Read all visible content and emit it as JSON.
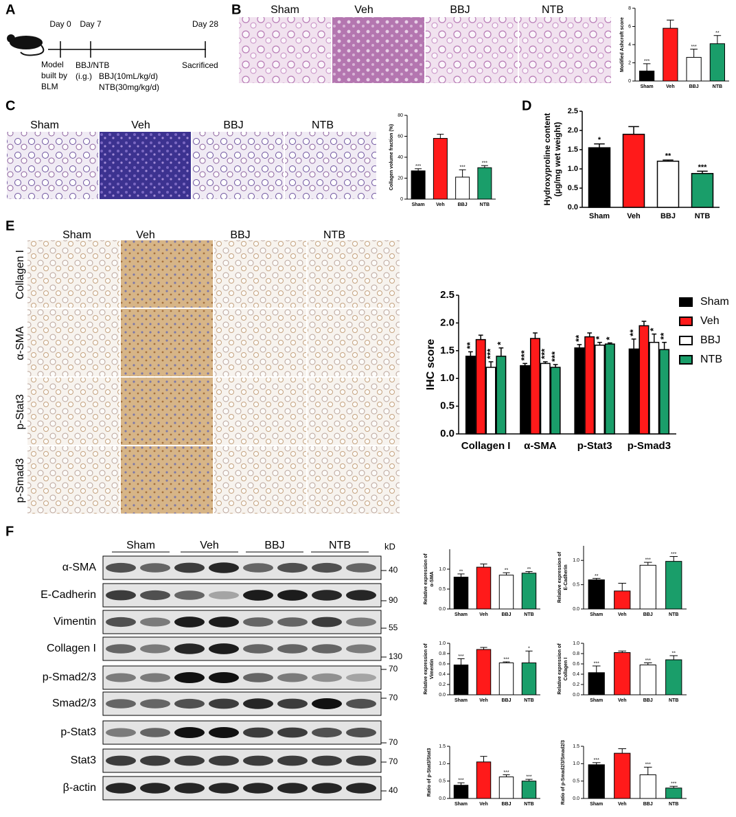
{
  "panel_labels": [
    "A",
    "B",
    "C",
    "D",
    "E",
    "F"
  ],
  "timeline": {
    "days": [
      "Day 0",
      "Day 7",
      "Day 28"
    ],
    "model": [
      "Model",
      "built by",
      "BLM"
    ],
    "treatment": "BBJ/NTB",
    "route": "(i.g.)",
    "doses": [
      "BBJ(10mL/kg/d)",
      "NTB(30mg/kg/d)"
    ],
    "endpoint": "Sacrificed"
  },
  "he_groups": [
    "Sham",
    "Veh",
    "BBJ",
    "NTB"
  ],
  "masson_groups": [
    "Sham",
    "Veh",
    "BBJ",
    "NTB"
  ],
  "ihc_groups": [
    "Sham",
    "Veh",
    "BBJ",
    "NTB"
  ],
  "ihc_rows": [
    "Collagen I",
    "α-SMA",
    "p-Stat3",
    "p-Smad3"
  ],
  "western_blot": {
    "groups": [
      "Sham",
      "Veh",
      "BBJ",
      "NTB"
    ],
    "unit": "kD",
    "proteins": [
      "α-SMA",
      "E-Cadherin",
      "Vimentin",
      "Collagen I",
      "p-Smad2/3",
      "Smad2/3",
      "p-Stat3",
      "Stat3",
      "β-actin"
    ],
    "markers": [
      "40",
      "90",
      "55",
      "130",
      "70",
      "70",
      "70",
      "70",
      "40"
    ]
  },
  "chart_data": [
    {
      "type": "bar",
      "ylabel": "Modified Ashcroft score",
      "categories": [
        "Sham",
        "Veh",
        "BBJ",
        "NTB"
      ],
      "values": [
        1.1,
        5.8,
        2.6,
        4.1
      ],
      "errors": [
        0.8,
        0.9,
        0.9,
        0.9
      ],
      "annotations": [
        "***",
        null,
        "***",
        "**"
      ],
      "colors": [
        "#000000",
        "#ff1a1a",
        "#ffffff",
        "#1a9e6a"
      ],
      "ylim": [
        0,
        8
      ],
      "yticks": [
        0,
        2,
        4,
        6,
        8
      ]
    },
    {
      "type": "bar",
      "ylabel": "Collagen volume fraction (%)",
      "categories": [
        "Sham",
        "Veh",
        "BBJ",
        "NTB"
      ],
      "values": [
        27,
        58,
        21,
        30
      ],
      "errors": [
        2,
        4,
        7,
        2
      ],
      "annotations": [
        "***",
        null,
        "***",
        "***"
      ],
      "colors": [
        "#000000",
        "#ff1a1a",
        "#ffffff",
        "#1a9e6a"
      ],
      "ylim": [
        0,
        80
      ],
      "yticks": [
        0,
        20,
        40,
        60,
        80
      ]
    },
    {
      "type": "bar",
      "ylabel": [
        "Hydroxyproline content",
        "(μg/mg wet weight)"
      ],
      "categories": [
        "Sham",
        "Veh",
        "BBJ",
        "NTB"
      ],
      "values": [
        1.55,
        1.9,
        1.2,
        0.88
      ],
      "errors": [
        0.1,
        0.2,
        0.03,
        0.06
      ],
      "annotations": [
        "*",
        null,
        "**",
        "***"
      ],
      "colors": [
        "#000000",
        "#ff1a1a",
        "#ffffff",
        "#1a9e6a"
      ],
      "ylim": [
        0,
        2.5
      ],
      "yticks": [
        {
          "value": 0,
          "label": "0.0"
        },
        0.5,
        {
          "value": 1,
          "label": "1.0"
        },
        1.5,
        {
          "value": 2,
          "label": "2.0"
        },
        2.5
      ]
    },
    {
      "type": "bar",
      "ylabel": "IHC score",
      "categories": [
        "Collagen I",
        "α-SMA",
        "p-Stat3",
        "p-Smad3"
      ],
      "legend": "right",
      "series": [
        {
          "name": "Sham",
          "color": "#000000",
          "values": [
            1.4,
            1.23,
            1.55,
            1.53
          ],
          "errors": [
            0.08,
            0.04,
            0.06,
            0.18
          ],
          "annotations": [
            "**",
            "***",
            "**",
            "**"
          ]
        },
        {
          "name": "Veh",
          "color": "#ff1a1a",
          "values": [
            1.7,
            1.72,
            1.75,
            1.95
          ],
          "errors": [
            0.08,
            0.1,
            0.07,
            0.08
          ],
          "annotations": [
            null,
            null,
            null,
            null
          ]
        },
        {
          "name": "BBJ",
          "color": "#ffffff",
          "values": [
            1.2,
            1.27,
            1.6,
            1.65
          ],
          "errors": [
            0.1,
            0.03,
            0.05,
            0.15
          ],
          "annotations": [
            "***",
            "***",
            "*",
            "*"
          ]
        },
        {
          "name": "NTB",
          "color": "#1a9e6a",
          "values": [
            1.4,
            1.2,
            1.62,
            1.52
          ],
          "errors": [
            0.15,
            0.05,
            0.02,
            0.13
          ],
          "annotations": [
            "*",
            "***",
            "*",
            "**"
          ]
        }
      ],
      "ylim": [
        0,
        2.5
      ],
      "yticks": [
        {
          "value": 0,
          "label": "0.0"
        },
        0.5,
        {
          "value": 1,
          "label": "1.0"
        },
        1.5,
        {
          "value": 2,
          "label": "2.0"
        },
        2.5
      ]
    },
    {
      "type": "bar",
      "ylabel": [
        "Relative expression of",
        "α-SMA"
      ],
      "categories": [
        "Sham",
        "Veh",
        "BBJ",
        "NTB"
      ],
      "values": [
        0.8,
        1.05,
        0.85,
        0.9
      ],
      "errors": [
        0.08,
        0.08,
        0.06,
        0.04
      ],
      "annotations": [
        "**",
        null,
        "**",
        "**"
      ],
      "colors": [
        "#000000",
        "#ff1a1a",
        "#ffffff",
        "#1a9e6a"
      ],
      "ylim": [
        0,
        1.5
      ],
      "yticks": [
        {
          "value": 0,
          "label": "0.0"
        },
        0.5,
        {
          "value": 1,
          "label": "1.0"
        }
      ]
    },
    {
      "type": "bar",
      "ylabel": [
        "Relative expression of",
        "E-Cadherin"
      ],
      "categories": [
        "Sham",
        "Veh",
        "BBJ",
        "NTB"
      ],
      "values": [
        0.6,
        0.37,
        0.9,
        0.98
      ],
      "errors": [
        0.03,
        0.16,
        0.06,
        0.1
      ],
      "annotations": [
        "**",
        null,
        "***",
        "***"
      ],
      "colors": [
        "#000000",
        "#ff1a1a",
        "#ffffff",
        "#1a9e6a"
      ],
      "ylim": [
        0,
        1.3
      ],
      "yticks": [
        {
          "value": 0,
          "label": "0.0"
        },
        0.5,
        {
          "value": 1,
          "label": "1.0"
        }
      ]
    },
    {
      "type": "bar",
      "ylabel": [
        "Relative expression of",
        "Vimentin"
      ],
      "categories": [
        "Sham",
        "Veh",
        "BBJ",
        "NTB"
      ],
      "values": [
        0.58,
        0.88,
        0.62,
        0.62
      ],
      "errors": [
        0.12,
        0.04,
        0.02,
        0.23
      ],
      "annotations": [
        "***",
        null,
        "***",
        "*"
      ],
      "colors": [
        "#000000",
        "#ff1a1a",
        "#ffffff",
        "#1a9e6a"
      ],
      "ylim": [
        0,
        1
      ],
      "yticks": [
        {
          "value": 0,
          "label": "0.0"
        },
        0.2,
        0.4,
        0.6,
        0.8,
        {
          "value": 1,
          "label": "1.0"
        }
      ]
    },
    {
      "type": "bar",
      "ylabel": [
        "Relative expression of",
        "Collagen I"
      ],
      "categories": [
        "Sham",
        "Veh",
        "BBJ",
        "NTB"
      ],
      "values": [
        0.43,
        0.82,
        0.58,
        0.68
      ],
      "errors": [
        0.13,
        0.03,
        0.04,
        0.08
      ],
      "annotations": [
        "***",
        null,
        "***",
        "**"
      ],
      "colors": [
        "#000000",
        "#ff1a1a",
        "#ffffff",
        "#1a9e6a"
      ],
      "ylim": [
        0,
        1
      ],
      "yticks": [
        {
          "value": 0,
          "label": "0.0"
        },
        0.2,
        0.4,
        0.6,
        0.8,
        {
          "value": 1,
          "label": "1.0"
        }
      ]
    },
    {
      "type": "bar",
      "ylabel": "Ratio of p-Stat3/Stat3",
      "categories": [
        "Sham",
        "Veh",
        "BBJ",
        "NTB"
      ],
      "values": [
        0.38,
        1.05,
        0.62,
        0.5
      ],
      "errors": [
        0.07,
        0.16,
        0.06,
        0.05
      ],
      "annotations": [
        "***",
        null,
        "***",
        "***"
      ],
      "colors": [
        "#000000",
        "#ff1a1a",
        "#ffffff",
        "#1a9e6a"
      ],
      "ylim": [
        0,
        1.5
      ],
      "yticks": [
        {
          "value": 0,
          "label": "0.0"
        },
        0.5,
        {
          "value": 1,
          "label": "1.0"
        },
        1.5
      ]
    },
    {
      "type": "bar",
      "ylabel": "Ratio of p-Smad2/3/Smad2/3",
      "categories": [
        "Sham",
        "Veh",
        "BBJ",
        "NTB"
      ],
      "values": [
        0.97,
        1.3,
        0.68,
        0.3
      ],
      "errors": [
        0.06,
        0.13,
        0.22,
        0.05
      ],
      "annotations": [
        "***",
        null,
        "***",
        "***"
      ],
      "colors": [
        "#000000",
        "#ff1a1a",
        "#ffffff",
        "#1a9e6a"
      ],
      "ylim": [
        0,
        1.5
      ],
      "yticks": [
        {
          "value": 0,
          "label": "0.0"
        },
        0.5,
        {
          "value": 1,
          "label": "1.0"
        },
        1.5
      ]
    }
  ]
}
